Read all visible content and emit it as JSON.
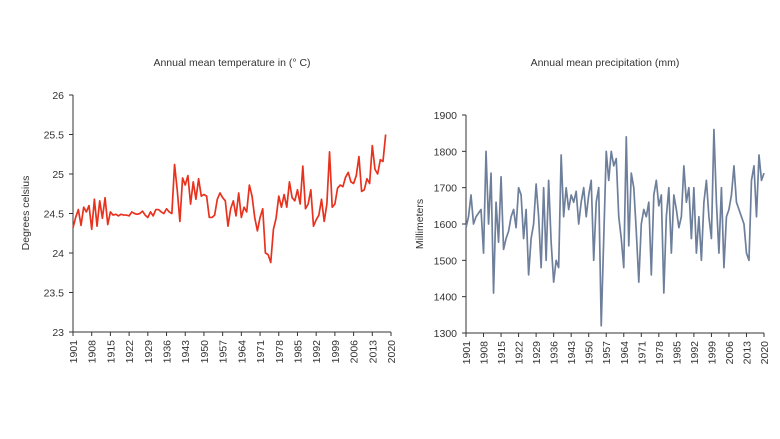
{
  "chart_data": [
    {
      "type": "line",
      "title": "Annual mean temperature in (° C)",
      "xlabel": "",
      "ylabel": "Degrees celsius",
      "ylim": [
        23,
        26
      ],
      "yticks": [
        23,
        23.5,
        24,
        24.5,
        25,
        25.5,
        26
      ],
      "ytick_labels": [
        "23",
        "23.5",
        "24",
        "24.5",
        "25",
        "25.5",
        "26"
      ],
      "xlim": [
        1901,
        2020
      ],
      "xticks": [
        1901,
        1908,
        1915,
        1922,
        1929,
        1936,
        1943,
        1950,
        1957,
        1964,
        1971,
        1978,
        1985,
        1992,
        1999,
        2006,
        2013,
        2020
      ],
      "xtick_labels": [
        "1901",
        "1908",
        "1915",
        "1922",
        "1929",
        "1936",
        "1943",
        "1950",
        "1957",
        "1964",
        "1971",
        "1978",
        "1985",
        "1992",
        "1999",
        "2006",
        "2013",
        "2020"
      ],
      "color": "#e8321e",
      "series": [
        {
          "name": "Annual mean temperature",
          "x_start": 1901,
          "x_step": 1,
          "values": [
            24.32,
            24.45,
            24.55,
            24.35,
            24.58,
            24.52,
            24.6,
            24.3,
            24.68,
            24.34,
            24.66,
            24.44,
            24.7,
            24.36,
            24.52,
            24.48,
            24.49,
            24.47,
            24.49,
            24.48,
            24.48,
            24.47,
            24.52,
            24.5,
            24.49,
            24.5,
            24.53,
            24.48,
            24.45,
            24.52,
            24.47,
            24.55,
            24.55,
            24.52,
            24.5,
            24.56,
            24.52,
            24.5,
            25.12,
            24.8,
            24.4,
            24.95,
            24.86,
            24.98,
            24.62,
            24.9,
            24.68,
            24.94,
            24.72,
            24.74,
            24.72,
            24.45,
            24.45,
            24.48,
            24.68,
            24.76,
            24.7,
            24.66,
            24.34,
            24.56,
            24.66,
            24.47,
            24.76,
            24.45,
            24.58,
            24.52,
            24.86,
            24.72,
            24.45,
            24.28,
            24.45,
            24.56,
            24.0,
            23.98,
            23.88,
            24.3,
            24.44,
            24.72,
            24.58,
            24.74,
            24.58,
            24.9,
            24.7,
            24.66,
            24.8,
            24.62,
            25.1,
            24.56,
            24.62,
            24.8,
            24.34,
            24.42,
            24.48,
            24.68,
            24.4,
            24.62,
            25.28,
            24.58,
            24.62,
            24.82,
            24.86,
            24.84,
            24.96,
            25.02,
            24.9,
            24.88,
            24.98,
            25.22,
            24.78,
            24.8,
            24.94,
            24.88,
            25.36,
            25.06,
            25.0,
            25.18,
            25.16,
            25.5
          ]
        }
      ]
    },
    {
      "type": "line",
      "title": "Annual mean precipitation (mm)",
      "xlabel": "",
      "ylabel": "Millimeters",
      "ylim": [
        1300,
        1900
      ],
      "yticks": [
        1300,
        1400,
        1500,
        1600,
        1700,
        1800,
        1900
      ],
      "ytick_labels": [
        "1300",
        "1400",
        "1500",
        "1600",
        "1700",
        "1800",
        "1900"
      ],
      "xlim": [
        1901,
        2020
      ],
      "xticks": [
        1901,
        1908,
        1915,
        1922,
        1929,
        1936,
        1943,
        1950,
        1957,
        1964,
        1971,
        1978,
        1985,
        1992,
        1999,
        2006,
        2013,
        2020
      ],
      "xtick_labels": [
        "1901",
        "1908",
        "1915",
        "1922",
        "1929",
        "1936",
        "1943",
        "1950",
        "1957",
        "1964",
        "1971",
        "1978",
        "1985",
        "1992",
        "1999",
        "2006",
        "2013",
        "2020"
      ],
      "color": "#6e7f9c",
      "series": [
        {
          "name": "Annual mean precipitation",
          "x_start": 1901,
          "x_step": 1,
          "values": [
            1590,
            1620,
            1680,
            1600,
            1620,
            1630,
            1640,
            1520,
            1800,
            1600,
            1740,
            1410,
            1660,
            1550,
            1730,
            1530,
            1560,
            1580,
            1620,
            1640,
            1590,
            1700,
            1680,
            1560,
            1640,
            1460,
            1560,
            1600,
            1710,
            1620,
            1480,
            1700,
            1500,
            1720,
            1550,
            1440,
            1500,
            1480,
            1790,
            1620,
            1700,
            1640,
            1680,
            1660,
            1690,
            1600,
            1660,
            1700,
            1620,
            1680,
            1720,
            1500,
            1660,
            1700,
            1320,
            1560,
            1800,
            1720,
            1800,
            1760,
            1780,
            1620,
            1560,
            1480,
            1840,
            1540,
            1740,
            1700,
            1580,
            1440,
            1600,
            1640,
            1620,
            1660,
            1460,
            1680,
            1720,
            1650,
            1680,
            1410,
            1620,
            1700,
            1520,
            1680,
            1640,
            1590,
            1620,
            1760,
            1660,
            1700,
            1560,
            1700,
            1520,
            1620,
            1500,
            1660,
            1720,
            1620,
            1560,
            1860,
            1660,
            1520,
            1700,
            1480,
            1620,
            1640,
            1680,
            1760,
            1660,
            1640,
            1620,
            1600,
            1520,
            1500,
            1720,
            1760,
            1620,
            1790,
            1720,
            1740
          ]
        }
      ]
    }
  ]
}
